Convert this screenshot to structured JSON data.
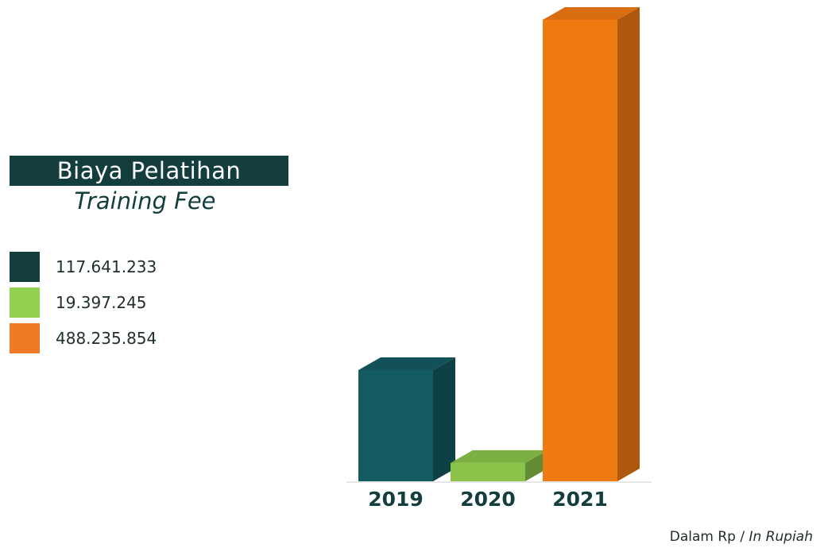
{
  "chart_data": {
    "type": "bar",
    "title": "Biaya Pelatihan",
    "subtitle": "Training Fee",
    "categories": [
      "2019",
      "2020",
      "2021"
    ],
    "values": [
      117641233,
      19397245,
      488235854
    ],
    "value_labels": [
      "117.641.233",
      "19.397.245",
      "488.235.854"
    ],
    "colors": [
      "#145a61",
      "#8bc34a",
      "#f07a12"
    ],
    "legend_colors": [
      "#143d3d",
      "#92d050",
      "#f07a26"
    ],
    "ylim": [
      0,
      488235854
    ],
    "legend_position": "left",
    "grid": false
  },
  "note": {
    "prefix": "Dalam Rp",
    "separator": " / ",
    "suffix": "In Rupiah"
  }
}
